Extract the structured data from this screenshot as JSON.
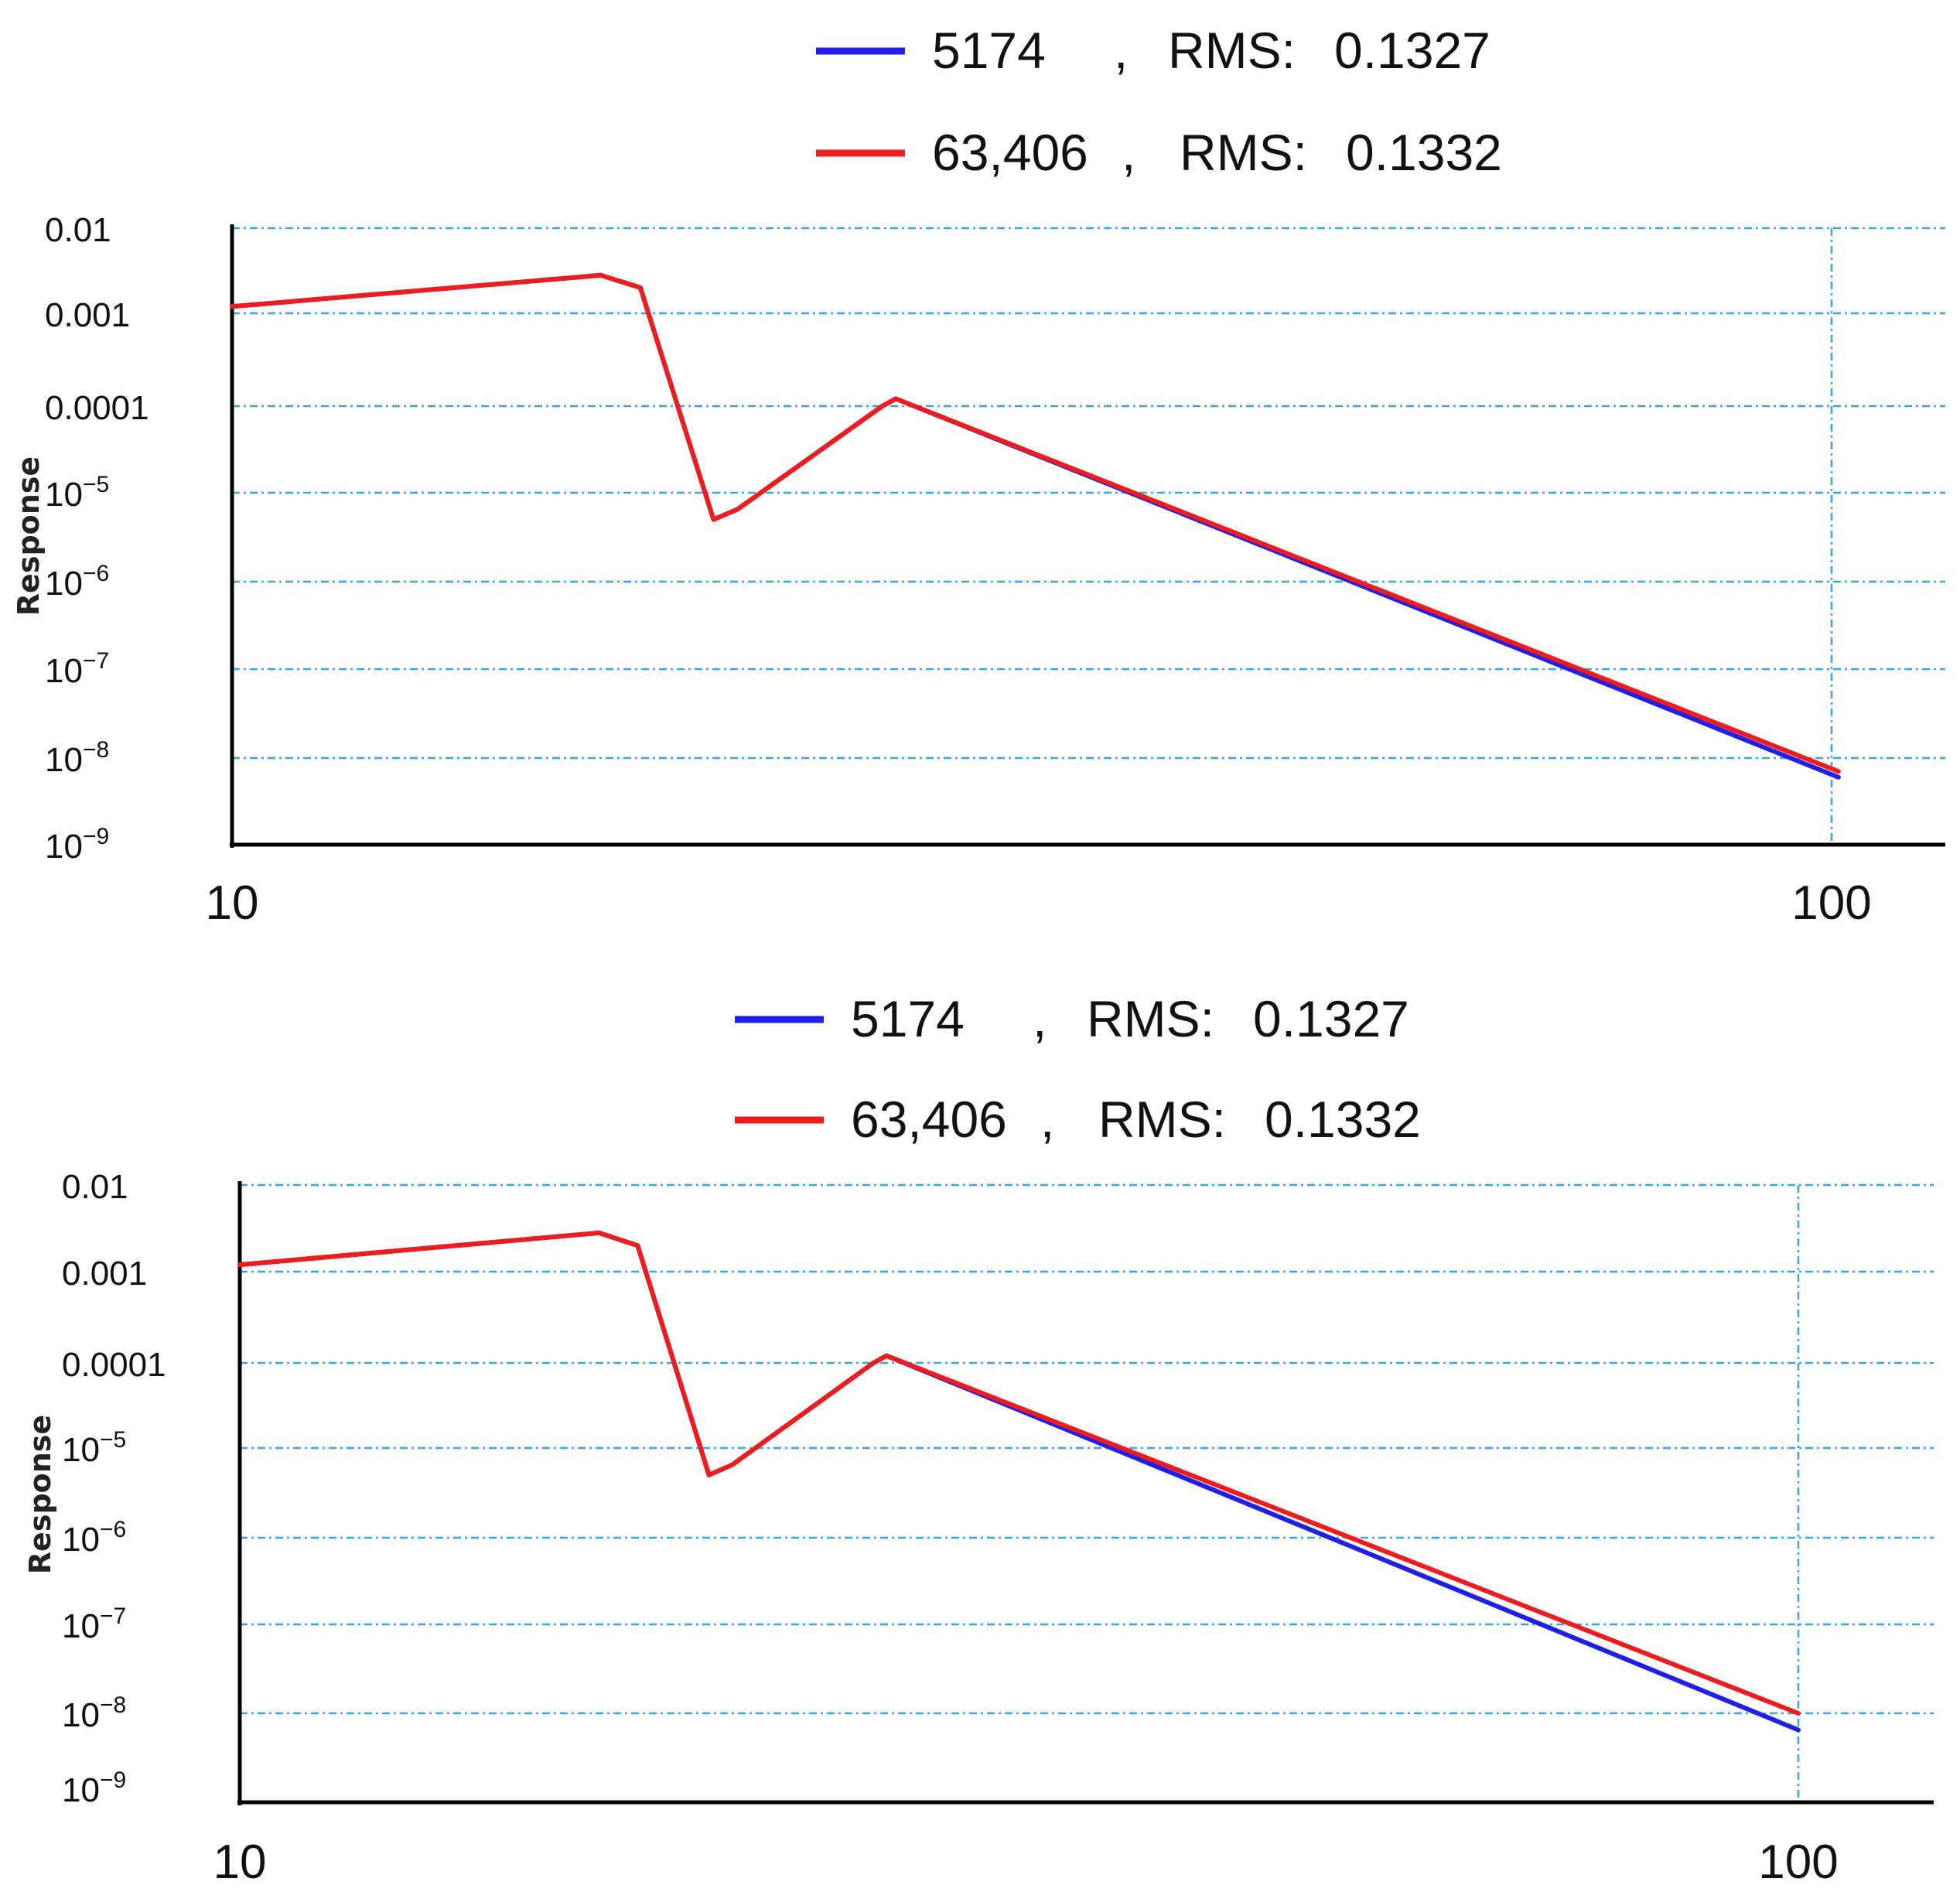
{
  "chart_data": [
    {
      "type": "line",
      "title": "",
      "xlabel": "",
      "ylabel": "Response",
      "x_scale": "log",
      "y_scale": "log",
      "xlim": [
        10,
        110
      ],
      "ylim": [
        1e-09,
        0.01
      ],
      "x_ticks": [
        {
          "value": 10,
          "label": "10"
        },
        {
          "value": 100,
          "label": "100"
        }
      ],
      "y_ticks": [
        {
          "value": 0.01,
          "base": "0.01",
          "exp": ""
        },
        {
          "value": 0.001,
          "base": "0.001",
          "exp": ""
        },
        {
          "value": 0.0001,
          "base": "0.0001",
          "exp": ""
        },
        {
          "value": 1e-05,
          "base": "10",
          "exp": "−5"
        },
        {
          "value": 1e-06,
          "base": "10",
          "exp": "−6"
        },
        {
          "value": 1e-07,
          "base": "10",
          "exp": "−7"
        },
        {
          "value": 1e-08,
          "base": "10",
          "exp": "−8"
        },
        {
          "value": 1e-09,
          "base": "10",
          "exp": "−9"
        }
      ],
      "grid": true,
      "legend_placement": "top-center",
      "series": [
        {
          "name": "5174",
          "rms_label": "RMS:",
          "rms": "0.1327",
          "color": "#1f1fe6",
          "points": [
            [
              10,
              0.0012
            ],
            [
              17,
              0.0028
            ],
            [
              18,
              0.002
            ],
            [
              20,
              5e-06
            ],
            [
              20.7,
              6.5e-06
            ],
            [
              25.5,
              0.0001
            ],
            [
              26,
              0.00012
            ],
            [
              101,
              6e-09
            ]
          ]
        },
        {
          "name": "63,406",
          "rms_label": "RMS:",
          "rms": "0.1332",
          "color": "#ee1c1c",
          "points": [
            [
              10,
              0.0012
            ],
            [
              17,
              0.0028
            ],
            [
              18,
              0.002
            ],
            [
              20,
              5e-06
            ],
            [
              20.7,
              6.5e-06
            ],
            [
              25.5,
              0.0001
            ],
            [
              26,
              0.00012
            ],
            [
              101,
              7e-09
            ]
          ]
        }
      ]
    },
    {
      "type": "line",
      "title": "",
      "xlabel": "",
      "ylabel": "Response",
      "x_scale": "log",
      "y_scale": "log",
      "xlim": [
        10,
        110
      ],
      "ylim": [
        1e-09,
        0.01
      ],
      "x_ticks": [
        {
          "value": 10,
          "label": "10"
        },
        {
          "value": 100,
          "label": "100"
        }
      ],
      "y_ticks": [
        {
          "value": 0.01,
          "base": "0.01",
          "exp": ""
        },
        {
          "value": 0.001,
          "base": "0.001",
          "exp": ""
        },
        {
          "value": 0.0001,
          "base": "0.0001",
          "exp": ""
        },
        {
          "value": 1e-05,
          "base": "10",
          "exp": "−5"
        },
        {
          "value": 1e-06,
          "base": "10",
          "exp": "−6"
        },
        {
          "value": 1e-07,
          "base": "10",
          "exp": "−7"
        },
        {
          "value": 1e-08,
          "base": "10",
          "exp": "−8"
        },
        {
          "value": 1e-09,
          "base": "10",
          "exp": "−9"
        }
      ],
      "grid": true,
      "legend_placement": "top-center",
      "series": [
        {
          "name": "5174",
          "rms_label": "RMS:",
          "rms": "0.1327",
          "color": "#1f1fe6",
          "points": [
            [
              10,
              0.0012
            ],
            [
              17,
              0.0028
            ],
            [
              18,
              0.002
            ],
            [
              20,
              5e-06
            ],
            [
              20.7,
              6.5e-06
            ],
            [
              25.5,
              0.0001
            ],
            [
              26,
              0.00012
            ],
            [
              100,
              6e-09
            ]
          ]
        },
        {
          "name": "63,406",
          "rms_label": "RMS:",
          "rms": "0.1332",
          "color": "#ee1c1c",
          "points": [
            [
              10,
              0.0012
            ],
            [
              17,
              0.0028
            ],
            [
              18,
              0.002
            ],
            [
              20,
              5e-06
            ],
            [
              20.7,
              6.5e-06
            ],
            [
              25.5,
              0.0001
            ],
            [
              26,
              0.00012
            ],
            [
              100,
              1e-08
            ]
          ]
        }
      ]
    }
  ]
}
